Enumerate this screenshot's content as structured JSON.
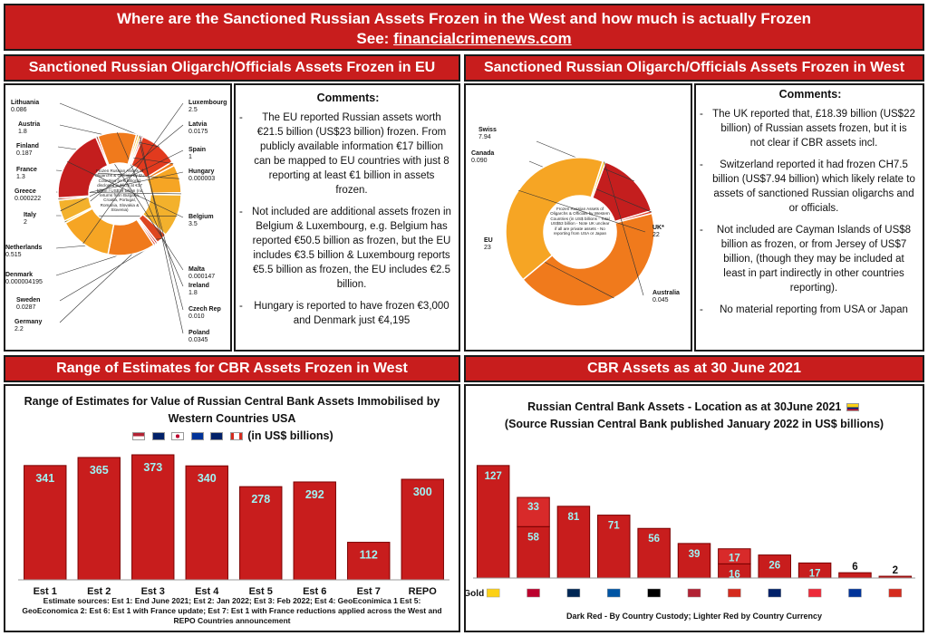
{
  "header": {
    "title": "Where are the Sanctioned Russian Assets Frozen in the West and how much is actually Frozen",
    "see_label": "See:",
    "see_link": "financialcrimenews.com"
  },
  "sections": {
    "eu": "Sanctioned Russian Oligarch/Officials Assets Frozen in EU",
    "west": "Sanctioned Russian Oligarch/Officials Assets Frozen in West",
    "cbr_range": "Range of Estimates for CBR Assets Frozen in West",
    "cbr_june": "CBR Assets as at 30 June 2021"
  },
  "eu_comments": {
    "heading": "Comments:",
    "p1": "The EU reported Russian assets worth €21.5 billion (US$23 billion) frozen. From publicly available information €17 billion can be mapped to EU countries with just 8 reporting at least €1 billion in assets frozen.",
    "p2": "Not included are additional assets frozen in Belgium & Luxembourg, e.g. Belgium has reported €50.5 billion as frozen, but the EU includes €3.5 billion & Luxembourg reports €5.5 billion as frozen, the EU includes €2.5 billion.",
    "p3": "Hungary is reported to have frozen €3,000 and Denmark just €4,195"
  },
  "west_comments": {
    "heading": "Comments:",
    "p1": "The UK reported that, £18.39 billion (US$22 billion) of Russian assets frozen, but it is not clear if CBR assets incl.",
    "p2": "Switzerland reported it had frozen CH7.5 billion (US$7.94 billion) which likely relate to assets of sanctioned Russian oligarchs and or officials.",
    "p3": "Not included are Cayman Islands of US$8 billion as frozen, or from Jersey of US$7 billion, (though they may be included at least in part indirectly in other countries reporting).",
    "p4": "No material reporting from USA or Japan"
  },
  "chart_data": [
    {
      "type": "pie",
      "center_text": "Frozen Russian Assets of Oligarchs & Officials by EU Countries (in € billions) disclosed publicly at €17 billion / US$19 billion (no returns from Bulgaria, Croatia, Portugal, Romania, Slovakia & Slovenia)",
      "slices": [
        {
          "label": "Lithuania",
          "value": 0.086,
          "value_label": "0.086"
        },
        {
          "label": "Austria",
          "value": 1.8,
          "value_label": "1.8"
        },
        {
          "label": "Finland",
          "value": 0.187,
          "value_label": "0.187"
        },
        {
          "label": "France",
          "value": 1.3,
          "value_label": "1.3"
        },
        {
          "label": "Greece",
          "value": 0.000222,
          "value_label": "0.000222"
        },
        {
          "label": "Italy",
          "value": 2,
          "value_label": "2"
        },
        {
          "label": "Netherlands",
          "value": 0.515,
          "value_label": "0.515"
        },
        {
          "label": "Denmark",
          "value": 4.195e-06,
          "value_label": "0.000004195"
        },
        {
          "label": "Sweden",
          "value": 0.0287,
          "value_label": "0.0287"
        },
        {
          "label": "Germany",
          "value": 2.2,
          "value_label": "2.2"
        },
        {
          "label": "Luxembourg",
          "value": 2.5,
          "value_label": "2.5"
        },
        {
          "label": "Latvia",
          "value": 0.0175,
          "value_label": "0.0175"
        },
        {
          "label": "Spain",
          "value": 1,
          "value_label": "1"
        },
        {
          "label": "Hungary",
          "value": 3e-06,
          "value_label": "0.000003"
        },
        {
          "label": "Belgium",
          "value": 3.5,
          "value_label": "3.5"
        },
        {
          "label": "Malta",
          "value": 0.000147,
          "value_label": "0.000147"
        },
        {
          "label": "Ireland",
          "value": 1.8,
          "value_label": "1.8"
        },
        {
          "label": "Czech Rep",
          "value": 0.01,
          "value_label": "0.010"
        },
        {
          "label": "Poland",
          "value": 0.0345,
          "value_label": "0.0345"
        }
      ]
    },
    {
      "type": "pie",
      "center_text": "Frozen Russian Assets of Oligarchs & Officials by Western Countries (in US$ billions - Total US$53 billion - Note UK unclear if all are private assets - No reporting from USA or Japan",
      "slices": [
        {
          "label": "Swiss",
          "value": 7.94,
          "value_label": "7.94"
        },
        {
          "label": "Canada",
          "value": 0.09,
          "value_label": "0.090"
        },
        {
          "label": "EU",
          "value": 23,
          "value_label": "23"
        },
        {
          "label": "UK*",
          "value": 22,
          "value_label": "22"
        },
        {
          "label": "Australia",
          "value": 0.045,
          "value_label": "0.045"
        }
      ]
    },
    {
      "type": "bar",
      "title": "Range of Estimates for Value of Russian Central Bank Assets Immobilised by Western Countries USA",
      "title_suffix": "(in US$ billions)",
      "categories": [
        "Est 1",
        "Est 2",
        "Est 3",
        "Est 4",
        "Est 5",
        "Est 6",
        "Est 7",
        "REPO"
      ],
      "values": [
        341,
        365,
        373,
        340,
        278,
        292,
        112,
        300
      ],
      "ylim": [
        0,
        400
      ],
      "footnote": "Estimate sources: Est 1: End June 2021; Est 2: Jan 2022; Est 3: Feb 2022; Est 4: GeoEconimica 1 Est 5: GeoEconomica 2: Est 6: Est 1 with France update; Est 7: Est 1 with France reductions applied across the West and REPO Countries announcement"
    },
    {
      "type": "bar",
      "title": "Russian Central Bank Assets - Location as at 30June 2021",
      "title_line2": "(Source Russian Central Bank published January 2022 in US$ billions)",
      "categories": [
        "Gold",
        "",
        "",
        "",
        "",
        "",
        "",
        "",
        "",
        "",
        ""
      ],
      "series": [
        {
          "values": [
            127,
            58,
            81,
            71,
            56,
            39,
            16,
            26,
            17,
            6,
            2
          ]
        },
        {
          "values": [
            null,
            33,
            null,
            null,
            null,
            null,
            17,
            null,
            null,
            null,
            null
          ]
        }
      ],
      "ylim": [
        0,
        135
      ],
      "legend": "Dark Red - By Country Custody; Lighter Red by Country Currency"
    }
  ],
  "colors": {
    "banner": "#c81d1d",
    "bar": "#c81d1d",
    "bar_edge": "#7a0000",
    "label_text": "#9ff3f3",
    "pie_palette": [
      "#c41e1e",
      "#e23a1e",
      "#f07a1c",
      "#f6a524",
      "#f9cf3a",
      "#f3b12c",
      "#dd4520"
    ]
  }
}
